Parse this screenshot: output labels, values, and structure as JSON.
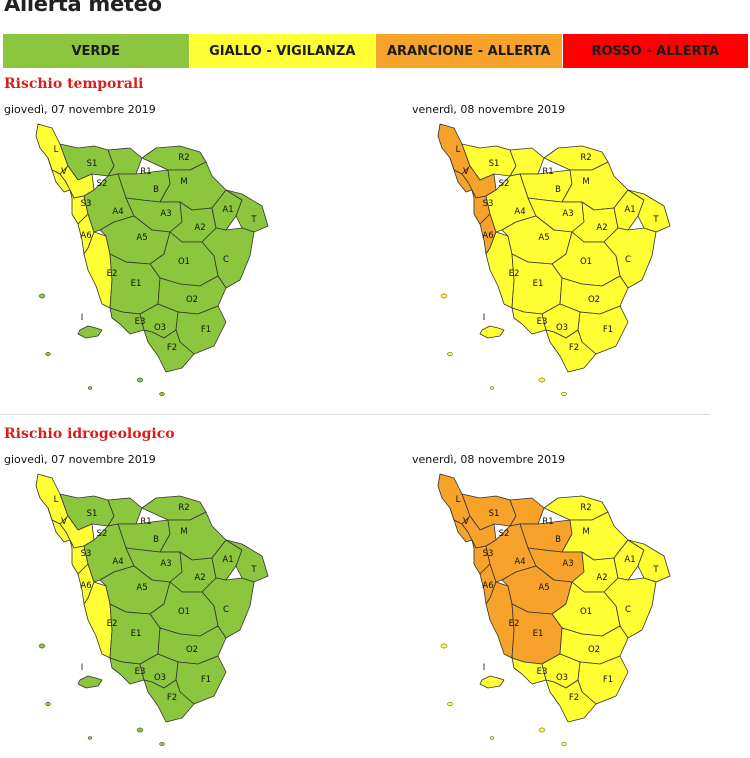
{
  "title": "Allerta meteo",
  "colors": {
    "green": "#8cc63f",
    "yellow": "#ffff33",
    "orange": "#f6a22b",
    "red": "#ff0000"
  },
  "legend": [
    {
      "label": "VERDE",
      "color": "#8cc63f"
    },
    {
      "label": "GIALLO - VIGILANZA",
      "color": "#ffff33"
    },
    {
      "label": "ARANCIONE - ALLERTA",
      "color": "#f6a22b"
    },
    {
      "label": "ROSSO - ALLERTA",
      "color": "#ff0000"
    }
  ],
  "sections": [
    {
      "title": "Rischio temporali",
      "maps": [
        {
          "date": "giovedì, 07 novembre 2019",
          "zones": {
            "L": "yellow",
            "V": "yellow",
            "S1": "green",
            "S2": "yellow",
            "S3": "yellow",
            "A6": "yellow",
            "E2": "yellow",
            "R1": "green",
            "R2": "green",
            "M": "green",
            "B": "green",
            "A1": "green",
            "A2": "green",
            "A3": "green",
            "A4": "green",
            "A5": "green",
            "T": "green",
            "C": "green",
            "O1": "green",
            "O2": "green",
            "O3": "green",
            "E1": "green",
            "E3": "green",
            "F1": "green",
            "F2": "green",
            "I": "green"
          }
        },
        {
          "date": "venerdì, 08 novembre 2019",
          "zones": {
            "L": "orange",
            "V": "orange",
            "S1": "yellow",
            "S2": "orange",
            "S3": "orange",
            "A6": "orange",
            "E2": "yellow",
            "R1": "yellow",
            "R2": "yellow",
            "M": "yellow",
            "B": "yellow",
            "A1": "yellow",
            "A2": "yellow",
            "A3": "yellow",
            "A4": "yellow",
            "A5": "yellow",
            "T": "yellow",
            "C": "yellow",
            "O1": "yellow",
            "O2": "yellow",
            "O3": "yellow",
            "E1": "yellow",
            "E3": "yellow",
            "F1": "yellow",
            "F2": "yellow",
            "I": "yellow"
          }
        }
      ]
    },
    {
      "title": "Rischio idrogeologico",
      "maps": [
        {
          "date": "giovedì, 07 novembre 2019",
          "zones": {
            "L": "yellow",
            "V": "yellow",
            "S1": "green",
            "S2": "yellow",
            "S3": "yellow",
            "A6": "yellow",
            "E2": "yellow",
            "R1": "green",
            "R2": "green",
            "M": "green",
            "B": "green",
            "A1": "green",
            "A2": "green",
            "A3": "green",
            "A4": "green",
            "A5": "green",
            "T": "green",
            "C": "green",
            "O1": "green",
            "O2": "green",
            "O3": "green",
            "E1": "green",
            "E3": "green",
            "F1": "green",
            "F2": "green",
            "I": "green"
          }
        },
        {
          "date": "venerdì, 08 novembre 2019",
          "zones": {
            "L": "orange",
            "V": "orange",
            "S1": "orange",
            "S2": "orange",
            "S3": "orange",
            "A6": "orange",
            "E2": "orange",
            "R1": "orange",
            "R2": "yellow",
            "M": "yellow",
            "B": "orange",
            "A1": "yellow",
            "A2": "yellow",
            "A3": "orange",
            "A4": "orange",
            "A5": "orange",
            "T": "yellow",
            "C": "yellow",
            "O1": "yellow",
            "O2": "yellow",
            "O3": "yellow",
            "E1": "orange",
            "E3": "yellow",
            "F1": "yellow",
            "F2": "yellow",
            "I": "yellow"
          }
        }
      ]
    }
  ]
}
